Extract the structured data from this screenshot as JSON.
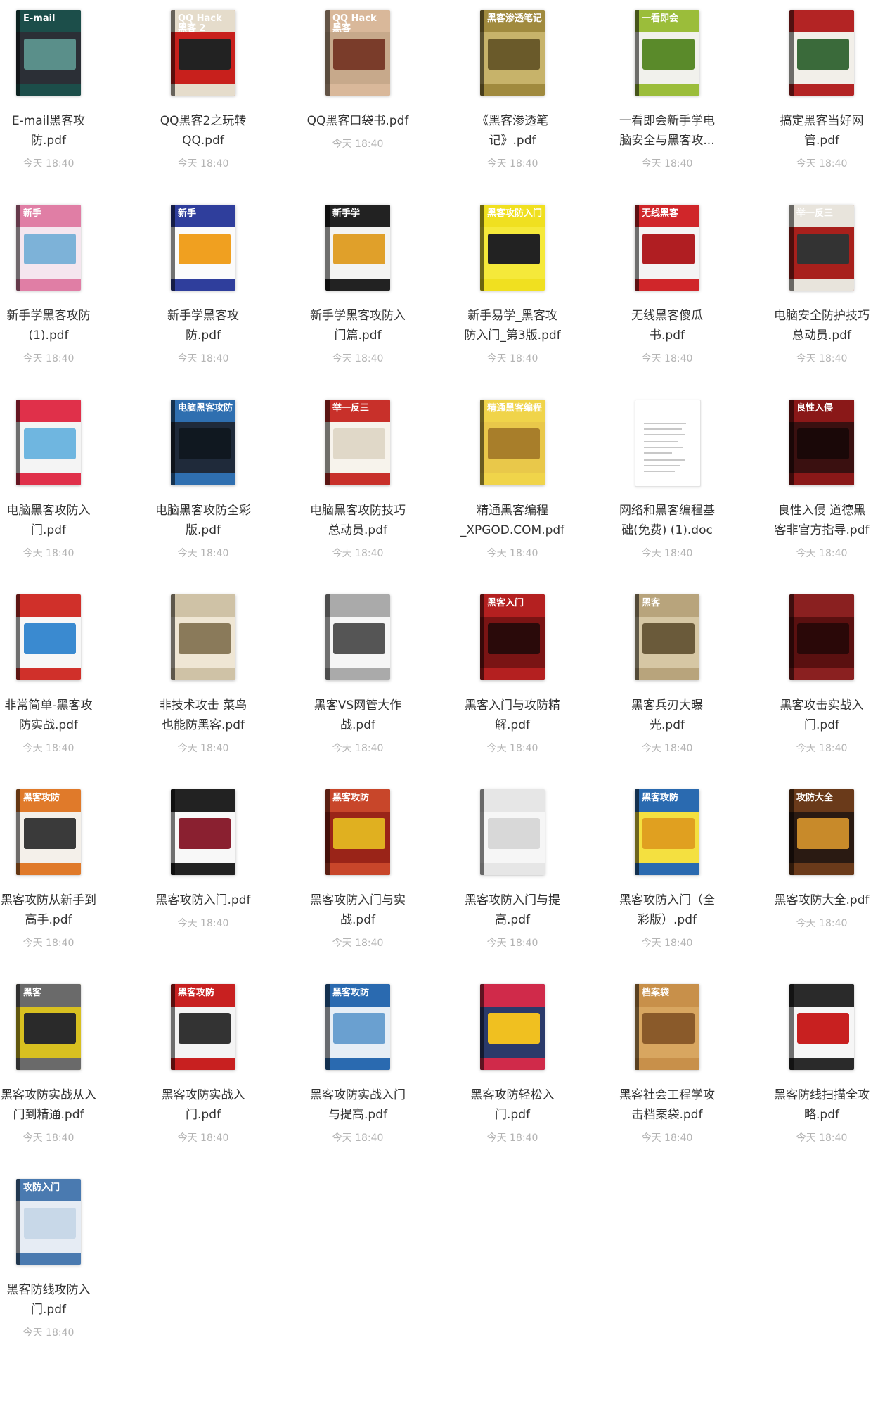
{
  "files": [
    {
      "name": "E-mail黑客攻防.pdf",
      "line1": "E-mail黑客攻",
      "line2": "防.pdf",
      "time": "今天 18:40",
      "cover": "E-mail",
      "colors": [
        "#2b2f36",
        "#1c4e4a",
        "#5a8f8a"
      ]
    },
    {
      "name": "QQ黑客2之玩转QQ.pdf",
      "line1": "QQ黑客2之玩转",
      "line2": "QQ.pdf",
      "time": "今天 18:40",
      "cover": "QQ Hack 黑客 2",
      "colors": [
        "#c8201c",
        "#e5dccb",
        "#222222"
      ]
    },
    {
      "name": "QQ黑客口袋书.pdf",
      "line1": "QQ黑客口袋书.pdf",
      "line2": "",
      "time": "今天 18:40",
      "cover": "QQ Hack 黑客",
      "colors": [
        "#c7a98b",
        "#d9b89a",
        "#7a3c2a"
      ]
    },
    {
      "name": "《黑客渗透笔记》.pdf",
      "line1": "《黑客渗透笔",
      "line2": "记》.pdf",
      "time": "今天 18:40",
      "cover": "黑客渗透笔记",
      "colors": [
        "#c7b36a",
        "#a08a3e",
        "#6a5a2a"
      ]
    },
    {
      "name": "一看即会新手学电脑安全与黑客攻...",
      "line1": "一看即会新手学电",
      "line2": "脑安全与黑客攻...",
      "time": "今天 18:40",
      "cover": "一看即会",
      "colors": [
        "#f1f1ec",
        "#9bbd3a",
        "#5a8a2a"
      ]
    },
    {
      "name": "搞定黑客当好网管.pdf",
      "line1": "搞定黑客当好网",
      "line2": "管.pdf",
      "time": "今天 18:40",
      "cover": "",
      "colors": [
        "#f2efe9",
        "#b32424",
        "#3a6a3a"
      ]
    },
    {
      "name": "新手学黑客攻防(1).pdf",
      "line1": "新手学黑客攻防",
      "line2": "(1).pdf",
      "time": "今天 18:40",
      "cover": "新手",
      "colors": [
        "#f5e6ef",
        "#e07ea5",
        "#7db2d8"
      ]
    },
    {
      "name": "新手学黑客攻防.pdf",
      "line1": "新手学黑客攻",
      "line2": "防.pdf",
      "time": "今天 18:40",
      "cover": "新手",
      "colors": [
        "#fbfbfb",
        "#2f3e9c",
        "#f0a020"
      ]
    },
    {
      "name": "新手学黑客攻防入门篇.pdf",
      "line1": "新手学黑客攻防入",
      "line2": "门篇.pdf",
      "time": "今天 18:40",
      "cover": "新手学",
      "colors": [
        "#f4f4f2",
        "#222222",
        "#e0a02a"
      ]
    },
    {
      "name": "新手易学_黑客攻防入门_第3版.pdf",
      "line1": "新手易学_黑客攻",
      "line2": "防入门_第3版.pdf",
      "time": "今天 18:40",
      "cover": "黑客攻防入门",
      "colors": [
        "#f5e93a",
        "#f0e020",
        "#222222"
      ]
    },
    {
      "name": "无线黑客傻瓜书.pdf",
      "line1": "无线黑客傻瓜",
      "line2": "书.pdf",
      "time": "今天 18:40",
      "cover": "无线黑客",
      "colors": [
        "#f4f4f4",
        "#d0262a",
        "#b01e22"
      ]
    },
    {
      "name": "电脑安全防护技巧总动员.pdf",
      "line1": "电脑安全防护技巧",
      "line2": "总动员.pdf",
      "time": "今天 18:40",
      "cover": "举一反三",
      "colors": [
        "#a8201c",
        "#e8e4dc",
        "#333333"
      ]
    },
    {
      "name": "电脑黑客攻防入门.pdf",
      "line1": "电脑黑客攻防入",
      "line2": "门.pdf",
      "time": "今天 18:40",
      "cover": "",
      "colors": [
        "#f4f4f4",
        "#e0304a",
        "#6fb6e0"
      ]
    },
    {
      "name": "电脑黑客攻防全彩版.pdf",
      "line1": "电脑黑客攻防全彩",
      "line2": "版.pdf",
      "time": "今天 18:40",
      "cover": "电脑黑客攻防",
      "colors": [
        "#1f2a3a",
        "#2f6fb0",
        "#101820"
      ]
    },
    {
      "name": "电脑黑客攻防技巧总动员.pdf",
      "line1": "电脑黑客攻防技巧",
      "line2": "总动员.pdf",
      "time": "今天 18:40",
      "cover": "举一反三",
      "colors": [
        "#f7f3ec",
        "#c8302a",
        "#e0d8c8"
      ]
    },
    {
      "name": "精通黑客编程_XPGOD.COM.pdf",
      "line1": "精通黑客编程",
      "line2": "_XPGOD.COM.pdf",
      "time": "今天 18:40",
      "cover": "精通黑客编程",
      "colors": [
        "#e9c84a",
        "#f0d44a",
        "#a87e2a"
      ]
    },
    {
      "name": "网络和黑客编程基础(免费) (1).doc",
      "line1": "网络和黑客编程基",
      "line2": "础(免费) (1).doc",
      "time": "今天 18:40",
      "cover": "",
      "colors": [
        "#ffffff",
        "#ffffff",
        "#ffffff"
      ],
      "doc": true
    },
    {
      "name": "良性入侵 道德黑客非官方指导.pdf",
      "line1": "良性入侵 道德黑",
      "line2": "客非官方指导.pdf",
      "time": "今天 18:40",
      "cover": "良性入侵",
      "colors": [
        "#3a1010",
        "#8a1818",
        "#1a0808"
      ]
    },
    {
      "name": "非常简单-黑客攻防实战.pdf",
      "line1": "非常简单-黑客攻",
      "line2": "防实战.pdf",
      "time": "今天 18:40",
      "cover": "",
      "colors": [
        "#f7f7f7",
        "#d0302a",
        "#3a8ad0"
      ]
    },
    {
      "name": "非技术攻击 菜鸟也能防黑客.pdf",
      "line1": "非技术攻击 菜鸟",
      "line2": "也能防黑客.pdf",
      "time": "今天 18:40",
      "cover": "",
      "colors": [
        "#efe6d4",
        "#cfc2a6",
        "#8a7a5a"
      ]
    },
    {
      "name": "黑客VS网管大作战.pdf",
      "line1": "黑客VS网管大作",
      "line2": "战.pdf",
      "time": "今天 18:40",
      "cover": "",
      "colors": [
        "#f6f6f6",
        "#aaaaaa",
        "#555555"
      ]
    },
    {
      "name": "黑客入门与攻防精解.pdf",
      "line1": "黑客入门与攻防精",
      "line2": "解.pdf",
      "time": "今天 18:40",
      "cover": "黑客入门",
      "colors": [
        "#7a1414",
        "#b42020",
        "#2a0a0a"
      ]
    },
    {
      "name": "黑客兵刃大曝光.pdf",
      "line1": "黑客兵刃大曝",
      "line2": "光.pdf",
      "time": "今天 18:40",
      "cover": "黑客",
      "colors": [
        "#d6c7a4",
        "#b8a47c",
        "#6a5a3a"
      ]
    },
    {
      "name": "黑客攻击实战入门.pdf",
      "line1": "黑客攻击实战入",
      "line2": "门.pdf",
      "time": "今天 18:40",
      "cover": "",
      "colors": [
        "#5a1010",
        "#8a2020",
        "#2a0808"
      ]
    },
    {
      "name": "黑客攻防从新手到高手.pdf",
      "line1": "黑客攻防从新手到",
      "line2": "高手.pdf",
      "time": "今天 18:40",
      "cover": "黑客攻防",
      "colors": [
        "#f4f0ea",
        "#e07a2a",
        "#3a3a3a"
      ]
    },
    {
      "name": "黑客攻防入门.pdf",
      "line1": "黑客攻防入门.pdf",
      "line2": "",
      "time": "今天 18:40",
      "cover": "",
      "colors": [
        "#f8f8f8",
        "#222222",
        "#8a2030"
      ]
    },
    {
      "name": "黑客攻防入门与实战.pdf",
      "line1": "黑客攻防入门与实",
      "line2": "战.pdf",
      "time": "今天 18:40",
      "cover": "黑客攻防",
      "colors": [
        "#9a2418",
        "#c8462a",
        "#e0b020"
      ]
    },
    {
      "name": "黑客攻防入门与提高.pdf",
      "line1": "黑客攻防入门与提",
      "line2": "高.pdf",
      "time": "今天 18:40",
      "cover": "",
      "colors": [
        "#f6f6f6",
        "#e6e6e6",
        "#d8d8d8"
      ]
    },
    {
      "name": "黑客攻防入门（全彩版）.pdf",
      "line1": "黑客攻防入门（全",
      "line2": "彩版）.pdf",
      "time": "今天 18:40",
      "cover": "黑客攻防",
      "colors": [
        "#f4e040",
        "#2a6ab0",
        "#e0a020"
      ]
    },
    {
      "name": "黑客攻防大全.pdf",
      "line1": "黑客攻防大全.pdf",
      "line2": "",
      "time": "今天 18:40",
      "cover": "攻防大全",
      "colors": [
        "#2a1a12",
        "#6a3a1a",
        "#c88a2a"
      ]
    },
    {
      "name": "黑客攻防实战从入门到精通.pdf",
      "line1": "黑客攻防实战从入",
      "line2": "门到精通.pdf",
      "time": "今天 18:40",
      "cover": "黑客",
      "colors": [
        "#d8c020",
        "#6a6a6a",
        "#2a2a2a"
      ]
    },
    {
      "name": "黑客攻防实战入门.pdf",
      "line1": "黑客攻防实战入",
      "line2": "门.pdf",
      "time": "今天 18:40",
      "cover": "黑客攻防",
      "colors": [
        "#f4f4f4",
        "#c82020",
        "#333333"
      ]
    },
    {
      "name": "黑客攻防实战入门与提高.pdf",
      "line1": "黑客攻防实战入门",
      "line2": "与提高.pdf",
      "time": "今天 18:40",
      "cover": "黑客攻防",
      "colors": [
        "#e6eef6",
        "#2a6ab0",
        "#6aa0d0"
      ]
    },
    {
      "name": "黑客攻防轻松入门.pdf",
      "line1": "黑客攻防轻松入",
      "line2": "门.pdf",
      "time": "今天 18:40",
      "cover": "",
      "colors": [
        "#2a3a6a",
        "#d02a4a",
        "#f0c020"
      ]
    },
    {
      "name": "黑客社会工程学攻击档案袋.pdf",
      "line1": "黑客社会工程学攻",
      "line2": "击档案袋.pdf",
      "time": "今天 18:40",
      "cover": "档案袋",
      "colors": [
        "#d8a660",
        "#c8904a",
        "#8a5a2a"
      ]
    },
    {
      "name": "黑客防线扫描全攻略.pdf",
      "line1": "黑客防线扫描全攻",
      "line2": "略.pdf",
      "time": "今天 18:40",
      "cover": "",
      "colors": [
        "#f6f6f6",
        "#2a2a2a",
        "#c82020"
      ]
    },
    {
      "name": "黑客防线攻防入门.pdf",
      "line1": "黑客防线攻防入",
      "line2": "门.pdf",
      "time": "今天 18:40",
      "cover": "攻防入门",
      "colors": [
        "#e6ecf4",
        "#4a7ab0",
        "#c8d8e8"
      ]
    }
  ]
}
